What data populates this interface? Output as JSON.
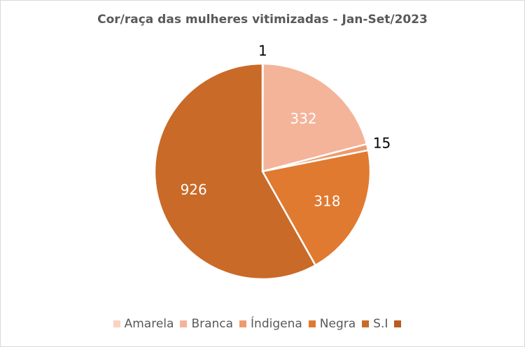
{
  "chart_data": {
    "type": "pie",
    "title": "Cor/raça das mulheres vitimizadas - Jan-Set/2023",
    "categories": [
      "Amarela",
      "Branca",
      "Índigena",
      "Negra",
      "S.I",
      ""
    ],
    "values": [
      1,
      332,
      15,
      318,
      926,
      0
    ],
    "data_labels": [
      "1",
      "332",
      "15",
      "318",
      "926",
      ""
    ],
    "colors": [
      "#f9d3c0",
      "#f4b49a",
      "#ee9a6e",
      "#e07a30",
      "#c96a28",
      "#b85c22"
    ],
    "legend_position": "bottom",
    "start_angle": "12 o'clock, clockwise"
  }
}
